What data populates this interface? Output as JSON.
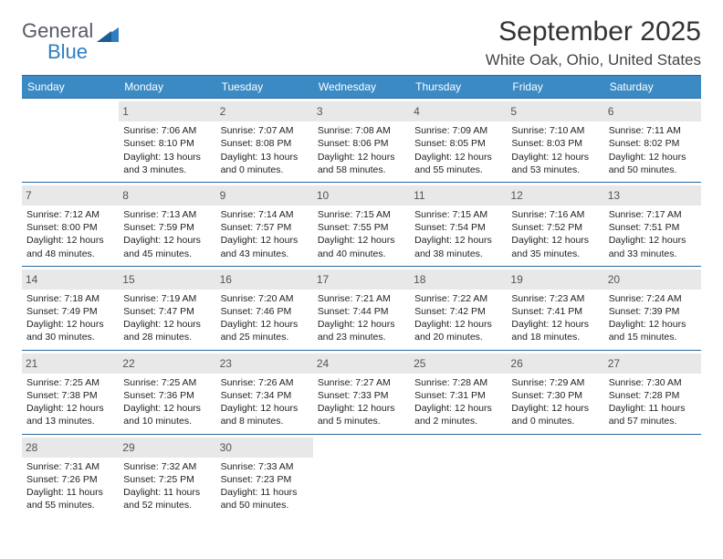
{
  "logo": {
    "line1": "General",
    "line2": "Blue",
    "triangle_color": "#2f7ec2",
    "text_color": "#555a66"
  },
  "header": {
    "month": "September 2025",
    "location": "White Oak, Ohio, United States"
  },
  "colors": {
    "header_bg": "#3b8ac4",
    "rule": "#2a6aa0",
    "daynum_bg": "#e8e8e8"
  },
  "days_of_week": [
    "Sunday",
    "Monday",
    "Tuesday",
    "Wednesday",
    "Thursday",
    "Friday",
    "Saturday"
  ],
  "weeks": [
    [
      {
        "n": "",
        "sunrise": "",
        "sunset": "",
        "daylight": ""
      },
      {
        "n": "1",
        "sunrise": "Sunrise: 7:06 AM",
        "sunset": "Sunset: 8:10 PM",
        "daylight": "Daylight: 13 hours and 3 minutes."
      },
      {
        "n": "2",
        "sunrise": "Sunrise: 7:07 AM",
        "sunset": "Sunset: 8:08 PM",
        "daylight": "Daylight: 13 hours and 0 minutes."
      },
      {
        "n": "3",
        "sunrise": "Sunrise: 7:08 AM",
        "sunset": "Sunset: 8:06 PM",
        "daylight": "Daylight: 12 hours and 58 minutes."
      },
      {
        "n": "4",
        "sunrise": "Sunrise: 7:09 AM",
        "sunset": "Sunset: 8:05 PM",
        "daylight": "Daylight: 12 hours and 55 minutes."
      },
      {
        "n": "5",
        "sunrise": "Sunrise: 7:10 AM",
        "sunset": "Sunset: 8:03 PM",
        "daylight": "Daylight: 12 hours and 53 minutes."
      },
      {
        "n": "6",
        "sunrise": "Sunrise: 7:11 AM",
        "sunset": "Sunset: 8:02 PM",
        "daylight": "Daylight: 12 hours and 50 minutes."
      }
    ],
    [
      {
        "n": "7",
        "sunrise": "Sunrise: 7:12 AM",
        "sunset": "Sunset: 8:00 PM",
        "daylight": "Daylight: 12 hours and 48 minutes."
      },
      {
        "n": "8",
        "sunrise": "Sunrise: 7:13 AM",
        "sunset": "Sunset: 7:59 PM",
        "daylight": "Daylight: 12 hours and 45 minutes."
      },
      {
        "n": "9",
        "sunrise": "Sunrise: 7:14 AM",
        "sunset": "Sunset: 7:57 PM",
        "daylight": "Daylight: 12 hours and 43 minutes."
      },
      {
        "n": "10",
        "sunrise": "Sunrise: 7:15 AM",
        "sunset": "Sunset: 7:55 PM",
        "daylight": "Daylight: 12 hours and 40 minutes."
      },
      {
        "n": "11",
        "sunrise": "Sunrise: 7:15 AM",
        "sunset": "Sunset: 7:54 PM",
        "daylight": "Daylight: 12 hours and 38 minutes."
      },
      {
        "n": "12",
        "sunrise": "Sunrise: 7:16 AM",
        "sunset": "Sunset: 7:52 PM",
        "daylight": "Daylight: 12 hours and 35 minutes."
      },
      {
        "n": "13",
        "sunrise": "Sunrise: 7:17 AM",
        "sunset": "Sunset: 7:51 PM",
        "daylight": "Daylight: 12 hours and 33 minutes."
      }
    ],
    [
      {
        "n": "14",
        "sunrise": "Sunrise: 7:18 AM",
        "sunset": "Sunset: 7:49 PM",
        "daylight": "Daylight: 12 hours and 30 minutes."
      },
      {
        "n": "15",
        "sunrise": "Sunrise: 7:19 AM",
        "sunset": "Sunset: 7:47 PM",
        "daylight": "Daylight: 12 hours and 28 minutes."
      },
      {
        "n": "16",
        "sunrise": "Sunrise: 7:20 AM",
        "sunset": "Sunset: 7:46 PM",
        "daylight": "Daylight: 12 hours and 25 minutes."
      },
      {
        "n": "17",
        "sunrise": "Sunrise: 7:21 AM",
        "sunset": "Sunset: 7:44 PM",
        "daylight": "Daylight: 12 hours and 23 minutes."
      },
      {
        "n": "18",
        "sunrise": "Sunrise: 7:22 AM",
        "sunset": "Sunset: 7:42 PM",
        "daylight": "Daylight: 12 hours and 20 minutes."
      },
      {
        "n": "19",
        "sunrise": "Sunrise: 7:23 AM",
        "sunset": "Sunset: 7:41 PM",
        "daylight": "Daylight: 12 hours and 18 minutes."
      },
      {
        "n": "20",
        "sunrise": "Sunrise: 7:24 AM",
        "sunset": "Sunset: 7:39 PM",
        "daylight": "Daylight: 12 hours and 15 minutes."
      }
    ],
    [
      {
        "n": "21",
        "sunrise": "Sunrise: 7:25 AM",
        "sunset": "Sunset: 7:38 PM",
        "daylight": "Daylight: 12 hours and 13 minutes."
      },
      {
        "n": "22",
        "sunrise": "Sunrise: 7:25 AM",
        "sunset": "Sunset: 7:36 PM",
        "daylight": "Daylight: 12 hours and 10 minutes."
      },
      {
        "n": "23",
        "sunrise": "Sunrise: 7:26 AM",
        "sunset": "Sunset: 7:34 PM",
        "daylight": "Daylight: 12 hours and 8 minutes."
      },
      {
        "n": "24",
        "sunrise": "Sunrise: 7:27 AM",
        "sunset": "Sunset: 7:33 PM",
        "daylight": "Daylight: 12 hours and 5 minutes."
      },
      {
        "n": "25",
        "sunrise": "Sunrise: 7:28 AM",
        "sunset": "Sunset: 7:31 PM",
        "daylight": "Daylight: 12 hours and 2 minutes."
      },
      {
        "n": "26",
        "sunrise": "Sunrise: 7:29 AM",
        "sunset": "Sunset: 7:30 PM",
        "daylight": "Daylight: 12 hours and 0 minutes."
      },
      {
        "n": "27",
        "sunrise": "Sunrise: 7:30 AM",
        "sunset": "Sunset: 7:28 PM",
        "daylight": "Daylight: 11 hours and 57 minutes."
      }
    ],
    [
      {
        "n": "28",
        "sunrise": "Sunrise: 7:31 AM",
        "sunset": "Sunset: 7:26 PM",
        "daylight": "Daylight: 11 hours and 55 minutes."
      },
      {
        "n": "29",
        "sunrise": "Sunrise: 7:32 AM",
        "sunset": "Sunset: 7:25 PM",
        "daylight": "Daylight: 11 hours and 52 minutes."
      },
      {
        "n": "30",
        "sunrise": "Sunrise: 7:33 AM",
        "sunset": "Sunset: 7:23 PM",
        "daylight": "Daylight: 11 hours and 50 minutes."
      },
      {
        "n": "",
        "sunrise": "",
        "sunset": "",
        "daylight": ""
      },
      {
        "n": "",
        "sunrise": "",
        "sunset": "",
        "daylight": ""
      },
      {
        "n": "",
        "sunrise": "",
        "sunset": "",
        "daylight": ""
      },
      {
        "n": "",
        "sunrise": "",
        "sunset": "",
        "daylight": ""
      }
    ]
  ]
}
